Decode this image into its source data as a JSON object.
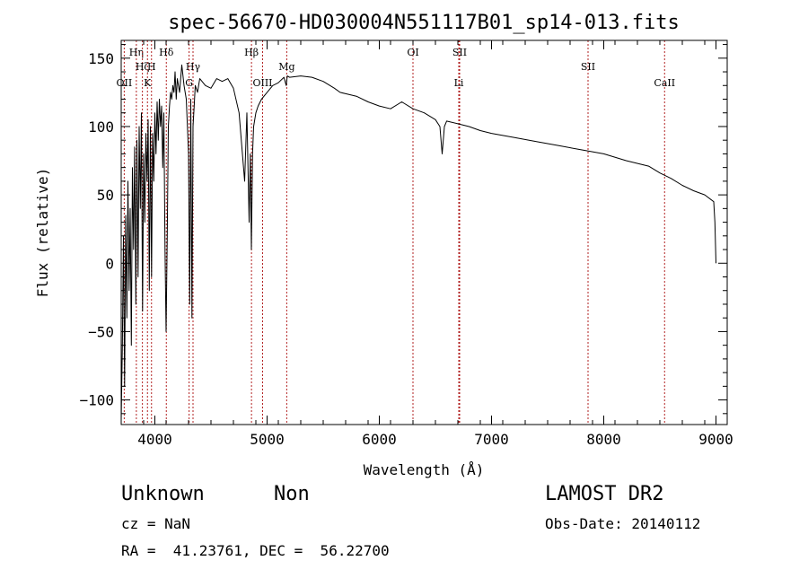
{
  "chart_data": {
    "type": "line",
    "title": "spec-56670-HD030004N551117B01_sp14-013.fits",
    "xlabel": "Wavelength (Å)",
    "ylabel": "Flux (relative)",
    "xlim": [
      3700,
      9100
    ],
    "ylim": [
      -118,
      163
    ],
    "xticks": [
      4000,
      5000,
      6000,
      7000,
      8000,
      9000
    ],
    "yticks": [
      -100,
      -50,
      0,
      50,
      100,
      150
    ],
    "xtick_labels": [
      "4000",
      "5000",
      "6000",
      "7000",
      "8000",
      "9000"
    ],
    "ytick_labels": [
      "−100",
      "−50",
      "0",
      "50",
      "100",
      "150"
    ],
    "grid": false,
    "line_color": "#000000",
    "marker_color": "#b22222",
    "series": [
      {
        "x": [
          3700,
          3710,
          3720,
          3730,
          3740,
          3750,
          3760,
          3770,
          3780,
          3790,
          3800,
          3810,
          3820,
          3830,
          3840,
          3850,
          3860,
          3870,
          3880,
          3890,
          3900,
          3910,
          3920,
          3930,
          3940,
          3950,
          3960,
          3970,
          3980,
          3990,
          4000,
          4010,
          4020,
          4030,
          4040,
          4050,
          4060,
          4070,
          4080,
          4090,
          4100,
          4110,
          4120,
          4130,
          4140,
          4150,
          4160,
          4170,
          4180,
          4190,
          4200,
          4220,
          4240,
          4260,
          4280,
          4300,
          4310,
          4320,
          4330,
          4340,
          4350,
          4360,
          4380,
          4400,
          4450,
          4500,
          4550,
          4600,
          4650,
          4700,
          4750,
          4800,
          4820,
          4840,
          4850,
          4860,
          4870,
          4880,
          4900,
          4920,
          4950,
          5000,
          5050,
          5100,
          5150,
          5170,
          5180,
          5200,
          5300,
          5400,
          5500,
          5600,
          5650,
          5700,
          5800,
          5900,
          6000,
          6100,
          6200,
          6300,
          6400,
          6500,
          6540,
          6560,
          6580,
          6600,
          6700,
          6800,
          6900,
          7000,
          7200,
          7400,
          7600,
          7800,
          8000,
          8200,
          8400,
          8500,
          8600,
          8700,
          8800,
          8900,
          8980,
          8990,
          9000
        ],
        "y": [
          -115,
          -60,
          20,
          -90,
          35,
          -40,
          60,
          -20,
          40,
          -60,
          70,
          10,
          85,
          -30,
          90,
          -10,
          100,
          40,
          110,
          -35,
          80,
          30,
          95,
          60,
          105,
          -20,
          100,
          -10,
          95,
          60,
          110,
          80,
          118,
          90,
          120,
          100,
          115,
          70,
          110,
          10,
          -50,
          20,
          100,
          115,
          125,
          120,
          130,
          125,
          140,
          120,
          135,
          125,
          145,
          130,
          120,
          80,
          -30,
          120,
          -40,
          100,
          115,
          130,
          125,
          135,
          130,
          128,
          135,
          133,
          135,
          128,
          110,
          60,
          110,
          30,
          80,
          10,
          80,
          100,
          110,
          115,
          120,
          125,
          130,
          132,
          136,
          130,
          137,
          136,
          137,
          136,
          133,
          128,
          125,
          124,
          122,
          118,
          115,
          113,
          118,
          113,
          110,
          105,
          100,
          80,
          100,
          104,
          102,
          100,
          97,
          95,
          92,
          89,
          86,
          83,
          80,
          75,
          71,
          66,
          62,
          57,
          53,
          50,
          45,
          30,
          0
        ]
      }
    ],
    "line_markers": [
      {
        "wavelength": 3835,
        "labels": [
          "Hη"
        ],
        "row": 1
      },
      {
        "wavelength": 3889,
        "labels": [
          "Hζ"
        ],
        "row": 2
      },
      {
        "wavelength": 3727,
        "labels": [
          "OII"
        ],
        "row": 3
      },
      {
        "wavelength": 3970,
        "labels": [
          "H"
        ],
        "row": 2
      },
      {
        "wavelength": 3934,
        "labels": [
          "K"
        ],
        "row": 3
      },
      {
        "wavelength": 4102,
        "labels": [
          "Hδ"
        ],
        "row": 1
      },
      {
        "wavelength": 4340,
        "labels": [
          "Hγ"
        ],
        "row": 2
      },
      {
        "wavelength": 4305,
        "labels": [
          "G"
        ],
        "row": 3
      },
      {
        "wavelength": 4861,
        "labels": [
          "Hβ"
        ],
        "row": 1
      },
      {
        "wavelength": 4960,
        "labels": [
          "OIII"
        ],
        "row": 3
      },
      {
        "wavelength": 5175,
        "labels": [
          "Mg"
        ],
        "row": 2
      },
      {
        "wavelength": 6300,
        "labels": [
          "OI"
        ],
        "row": 1
      },
      {
        "wavelength": 6716,
        "labels": [
          "SII"
        ],
        "row": 1
      },
      {
        "wavelength": 6708,
        "labels": [
          "Li"
        ],
        "row": 3
      },
      {
        "wavelength": 7860,
        "labels": [
          "SII"
        ],
        "row": 2
      },
      {
        "wavelength": 8542,
        "labels": [
          "CaII"
        ],
        "row": 3
      }
    ]
  },
  "info": {
    "object_name": "Unknown",
    "object_class": "Non",
    "survey": "LAMOST DR2",
    "cz": "cz = NaN",
    "obs_date": "Obs-Date: 20140112",
    "coords": "RA =  41.23761, DEC =  56.22700"
  }
}
